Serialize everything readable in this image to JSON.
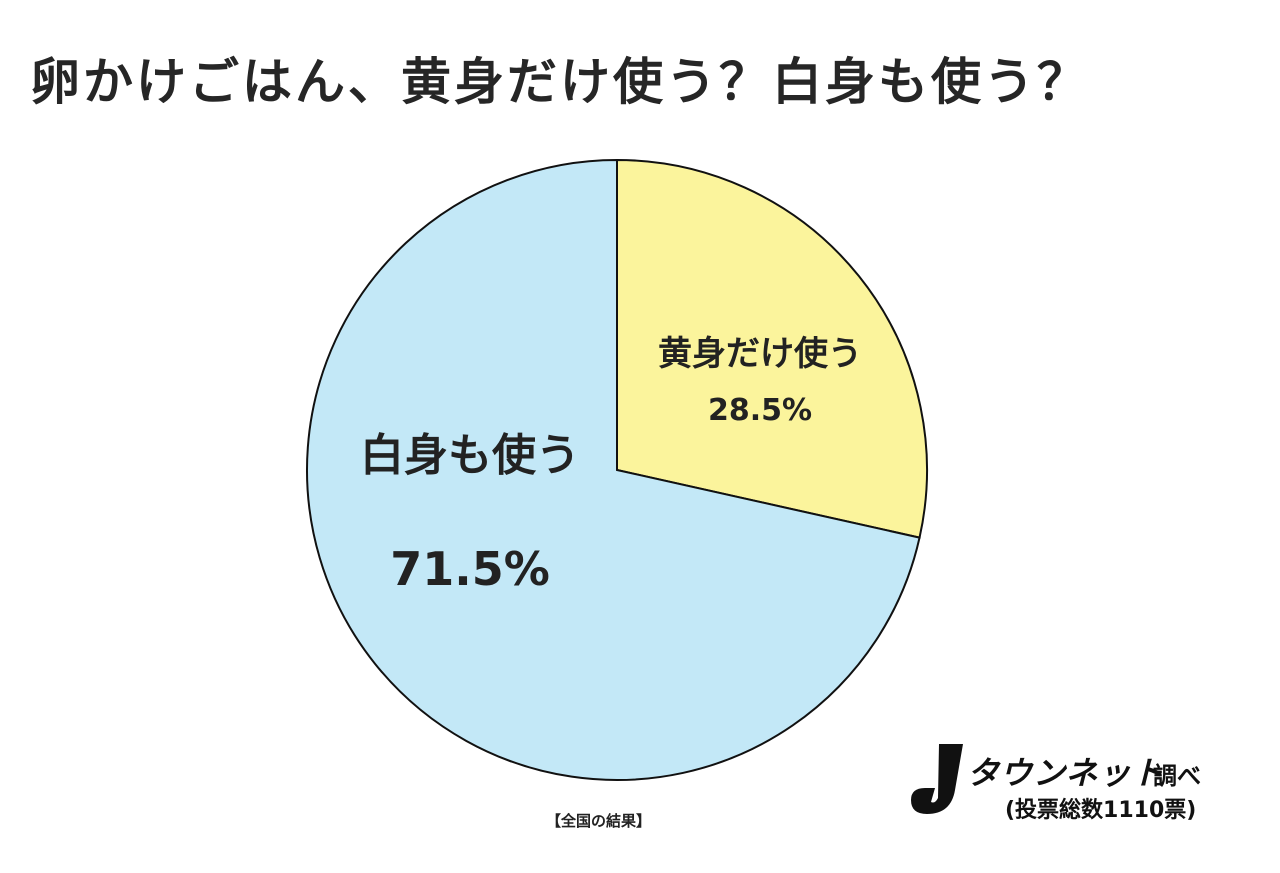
{
  "title": "卵かけごはん、黄身だけ使う？白身も使う？",
  "chart_data": {
    "type": "pie",
    "title": "卵かけごはん、黄身だけ使う？白身も使う？",
    "slices": [
      {
        "label": "黄身だけ使う",
        "value": 28.5,
        "value_label": "28.5%",
        "color": "#fbf49c"
      },
      {
        "label": "白身も使う",
        "value": 71.5,
        "value_label": "71.5%",
        "color": "#c3e8f7"
      }
    ],
    "start": "12 o'clock, clockwise",
    "legend": "none (labels inside slices)"
  },
  "footnote": "【全国の結果】",
  "source": {
    "brand": "タウンネット",
    "suffix": "調べ",
    "votes": "(投票総数1110票)"
  },
  "colors": {
    "outline": "#111111",
    "text": "#222222"
  }
}
